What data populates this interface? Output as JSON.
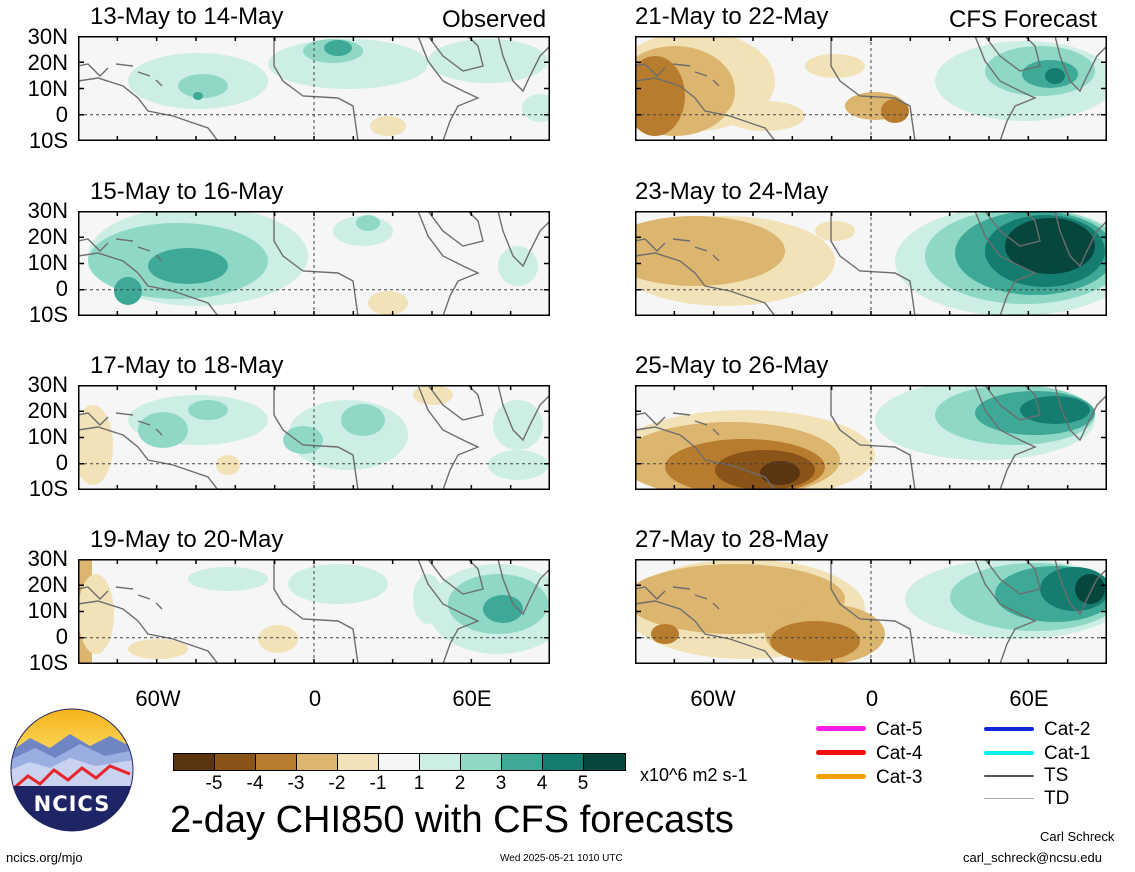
{
  "header": {
    "observed_label": "Observed",
    "forecast_label": "CFS Forecast"
  },
  "panels": {
    "observed": [
      {
        "title": "13-May to 14-May"
      },
      {
        "title": "15-May to 16-May"
      },
      {
        "title": "17-May to 18-May"
      },
      {
        "title": "19-May to 20-May"
      }
    ],
    "forecast": [
      {
        "title": "21-May to 22-May"
      },
      {
        "title": "23-May to 24-May"
      },
      {
        "title": "25-May to 26-May"
      },
      {
        "title": "27-May to 28-May"
      }
    ]
  },
  "axes": {
    "lat_labels": [
      "30N",
      "20N",
      "10N",
      "0",
      "10S"
    ],
    "lon_labels": [
      "60W",
      "0",
      "60E"
    ]
  },
  "colorbar": {
    "ticks": [
      "-5",
      "-4",
      "-3",
      "-2",
      "-1",
      "1",
      "2",
      "3",
      "4",
      "5"
    ],
    "colors": [
      "#5a3510",
      "#8a5318",
      "#b77c2e",
      "#dcb56f",
      "#f2e2b8",
      "#f6f6f6",
      "#cdeee4",
      "#8fd8c6",
      "#3ea996",
      "#157d70",
      "#06463d"
    ],
    "units": "x10^6 m2 s-1"
  },
  "legend": {
    "items": [
      {
        "label": "Cat-5",
        "color": "#ff1fe8"
      },
      {
        "label": "Cat-4",
        "color": "#ee1010"
      },
      {
        "label": "Cat-3",
        "color": "#f5a000"
      },
      {
        "label": "Cat-2",
        "color": "#1028d8"
      },
      {
        "label": "Cat-1",
        "color": "#00f0f0"
      },
      {
        "label": "TS",
        "color": "#555555"
      },
      {
        "label": "TD",
        "color": "#aaaaaa"
      }
    ]
  },
  "main_title": "2-day CHI850 with CFS forecasts",
  "footer": {
    "logo_text": "NCICS",
    "url": "ncics.org/mjo",
    "timestamp": "Wed 2025-05-21 1010 UTC",
    "author": "Carl Schreck",
    "email": "carl_schreck@ncsu.edu"
  }
}
